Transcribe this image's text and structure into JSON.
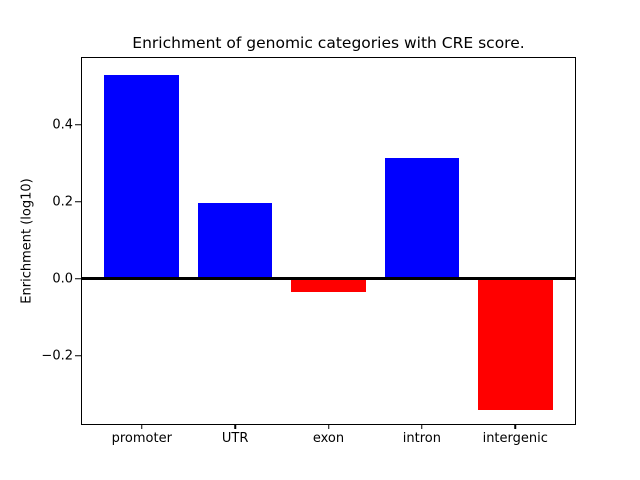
{
  "chart_data": {
    "type": "bar",
    "title": "Enrichment of genomic categories with CRE score.",
    "xlabel": "",
    "ylabel": "Enrichment (log10)",
    "categories": [
      "promoter",
      "UTR",
      "exon",
      "intron",
      "intergenic"
    ],
    "values": [
      0.53,
      0.196,
      -0.035,
      0.313,
      -0.34
    ],
    "positive_color": "#0000ff",
    "negative_color": "#ff0000",
    "bar_width": 0.8,
    "yticks": [
      0.4,
      0.2,
      0.0,
      -0.2
    ],
    "ytick_labels": [
      "0.4",
      "0.2",
      "0.0",
      "−0.2"
    ],
    "ylim": [
      -0.377,
      0.574
    ],
    "xlim": [
      -0.64,
      4.64
    ],
    "zero_line": true,
    "grid": false,
    "legend": null,
    "background_color": "#ffffff",
    "axis_color": "#000000"
  }
}
